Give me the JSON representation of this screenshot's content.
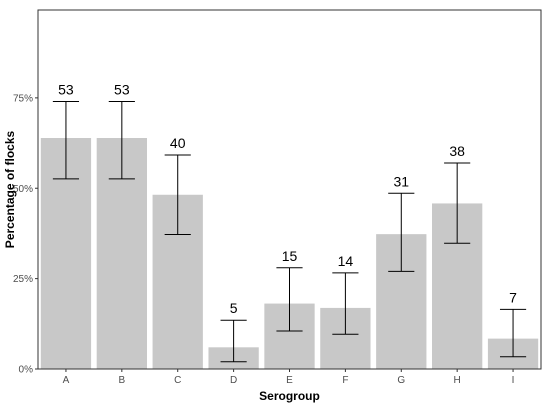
{
  "chart_data": {
    "type": "bar",
    "title": "",
    "xlabel": "Serogroup",
    "ylabel": "Percentage of flocks",
    "categories": [
      "A",
      "B",
      "C",
      "D",
      "E",
      "F",
      "G",
      "H",
      "I"
    ],
    "values": [
      63.9,
      63.9,
      48.2,
      6.0,
      18.1,
      16.9,
      37.3,
      45.8,
      8.4
    ],
    "error_low": [
      52.6,
      52.6,
      37.2,
      2.0,
      10.5,
      9.6,
      27.0,
      34.8,
      3.4
    ],
    "error_high": [
      74.0,
      74.0,
      59.2,
      13.5,
      28.0,
      26.6,
      48.6,
      57.0,
      16.5
    ],
    "data_labels": [
      "53",
      "53",
      "40",
      "5",
      "15",
      "14",
      "31",
      "38",
      "7"
    ],
    "ylim": [
      0,
      100
    ],
    "yticks": [
      0,
      25,
      50,
      75
    ],
    "ytick_labels": [
      "0%",
      "25%",
      "50%",
      "75%"
    ],
    "grid": false,
    "legend": "none",
    "colors": {
      "bar": "#c8c8c8",
      "error_bar": "#000000",
      "panel_border": "#333333"
    }
  }
}
